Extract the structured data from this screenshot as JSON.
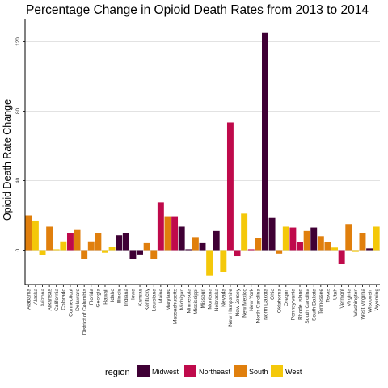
{
  "chart_data": {
    "type": "bar",
    "title": "Percentage Change in Opioid Death Rates from 2013 to 2014",
    "xlabel": "",
    "ylabel": "Opioid Death Rate Change",
    "ylim": [
      -20,
      130
    ],
    "yticks": [
      0,
      40,
      80,
      120
    ],
    "grid": true,
    "legend": {
      "title": "region",
      "position": "bottom",
      "entries": [
        {
          "name": "Midwest",
          "color": "#3f0035"
        },
        {
          "name": "Northeast",
          "color": "#bf0a4b"
        },
        {
          "name": "South",
          "color": "#e07f0d"
        },
        {
          "name": "West",
          "color": "#f4c80a"
        }
      ]
    },
    "categories": [
      "Alabama",
      "Alaska",
      "Arizona",
      "Arkansas",
      "California",
      "Colorado",
      "Connecticut",
      "Delaware",
      "District of Columbia",
      "Florida",
      "Georgia",
      "Hawaii",
      "Idaho",
      "Illinois",
      "Indiana",
      "Iowa",
      "Kansas",
      "Kentucky",
      "Louisiana",
      "Maine",
      "Maryland",
      "Massachusetts",
      "Michigan",
      "Minnesota",
      "Mississippi",
      "Missouri",
      "Montana",
      "Nebraska",
      "Nevada",
      "New Hampshire",
      "New Jersey",
      "New Mexico",
      "New York",
      "North Carolina",
      "North Dakota",
      "Ohio",
      "Oklahoma",
      "Oregon",
      "Pennsylvania",
      "Rhode Island",
      "South Carolina",
      "South Dakota",
      "Tennessee",
      "Texas",
      "Utah",
      "Vermont",
      "Virginia",
      "Washington",
      "West Virginia",
      "Wisconsin",
      "Wyoming"
    ],
    "regions": [
      "South",
      "West",
      "West",
      "South",
      "West",
      "West",
      "Northeast",
      "South",
      "South",
      "South",
      "South",
      "West",
      "West",
      "Midwest",
      "Midwest",
      "Midwest",
      "Midwest",
      "South",
      "South",
      "Northeast",
      "South",
      "Northeast",
      "Midwest",
      "Midwest",
      "South",
      "Midwest",
      "West",
      "Midwest",
      "West",
      "Northeast",
      "Northeast",
      "West",
      "Northeast",
      "South",
      "Midwest",
      "Midwest",
      "South",
      "West",
      "Northeast",
      "Northeast",
      "South",
      "Midwest",
      "South",
      "South",
      "West",
      "Northeast",
      "South",
      "West",
      "South",
      "Midwest",
      "West"
    ],
    "values": [
      20,
      17,
      -3,
      13.5,
      0.5,
      5,
      10,
      12,
      -5,
      5,
      10,
      -1.5,
      2,
      8.5,
      10,
      -5,
      -2.5,
      4,
      -5,
      27.5,
      19.5,
      19.5,
      13.5,
      0.5,
      7.5,
      4,
      -14.5,
      11,
      -12.5,
      73.5,
      -3.5,
      21,
      0.5,
      7,
      125,
      18.5,
      -2,
      13.5,
      13,
      4.5,
      11,
      13,
      8,
      4.5,
      1.5,
      -8,
      15,
      -1,
      10,
      1,
      13.5
    ]
  }
}
